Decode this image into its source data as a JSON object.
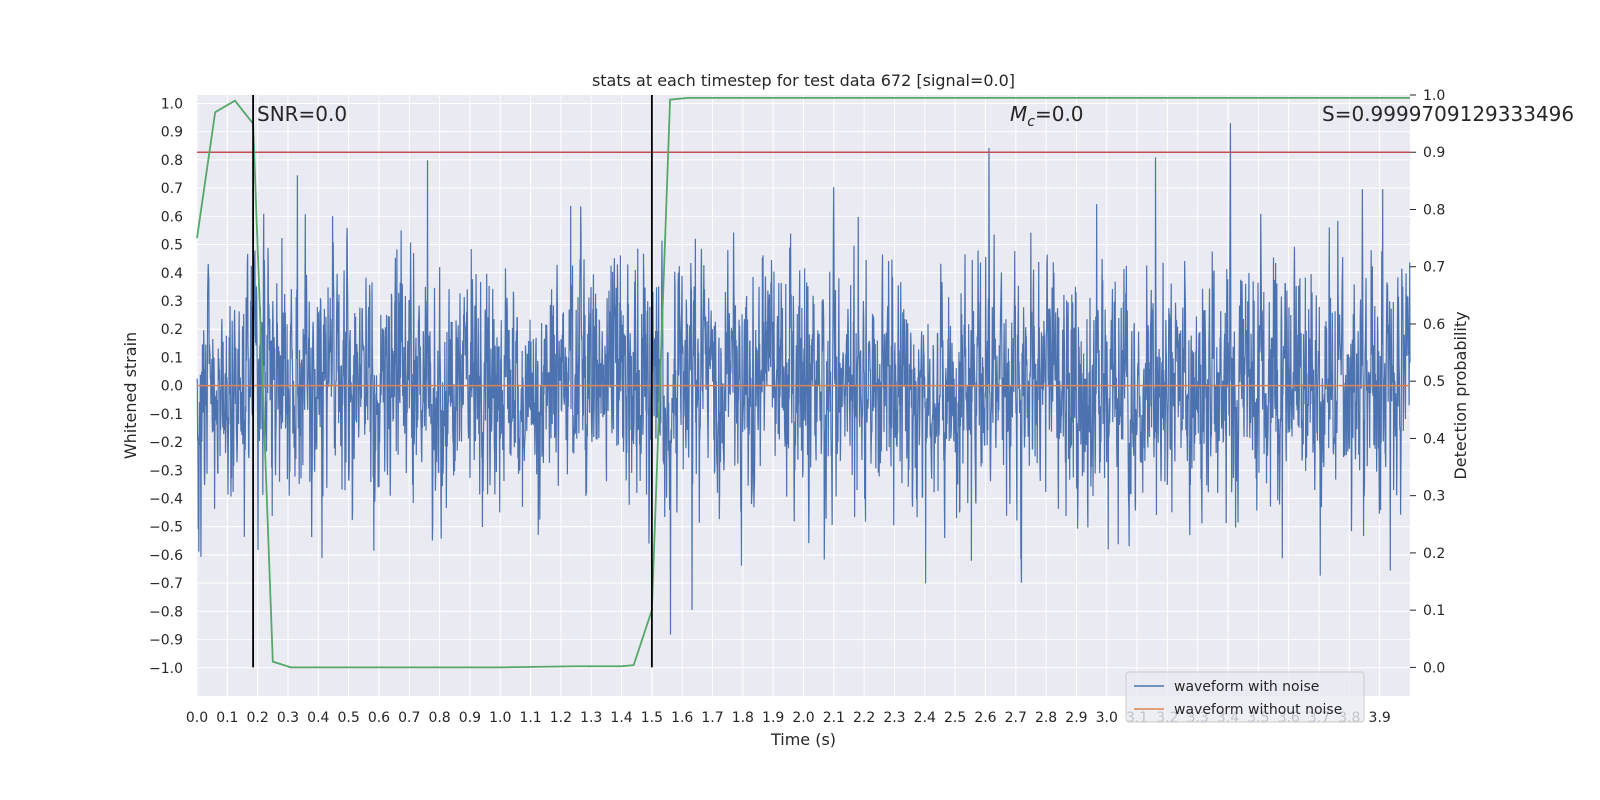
{
  "chart_data": {
    "type": "line",
    "title": "stats at each timestep for test data 672 [signal=0.0]",
    "xlabel": "Time (s)",
    "ylabel": "Whitened strain",
    "y2label": "Detection probability",
    "xlim": [
      0.0,
      4.0
    ],
    "ylim": [
      -1.1,
      1.03
    ],
    "y2lim": [
      -0.05,
      1.0
    ],
    "grid": true,
    "x_ticks": [
      "0.0",
      "0.1",
      "0.2",
      "0.3",
      "0.4",
      "0.5",
      "0.6",
      "0.7",
      "0.8",
      "0.9",
      "1.0",
      "1.1",
      "1.2",
      "1.3",
      "1.4",
      "1.5",
      "1.6",
      "1.7",
      "1.8",
      "1.9",
      "2.0",
      "2.1",
      "2.2",
      "2.3",
      "2.4",
      "2.5",
      "2.6",
      "2.7",
      "2.8",
      "2.9",
      "3.0",
      "3.1",
      "3.2",
      "3.3",
      "3.4",
      "3.5",
      "3.6",
      "3.7",
      "3.8",
      "3.9"
    ],
    "y_ticks": [
      "1.0",
      "0.9",
      "0.8",
      "0.7",
      "0.6",
      "0.5",
      "0.4",
      "0.3",
      "0.2",
      "0.1",
      "0.0",
      "-0.1",
      "-0.2",
      "-0.3",
      "-0.4",
      "-0.5",
      "-0.6",
      "-0.7",
      "-0.8",
      "-0.9",
      "-1.0"
    ],
    "y2_ticks": [
      "1.0",
      "0.9",
      "0.8",
      "0.7",
      "0.6",
      "0.5",
      "0.4",
      "0.3",
      "0.2",
      "0.1",
      "0.0"
    ],
    "annotations": {
      "snr": "SNR=0.0",
      "mc_symbol": "M",
      "mc_sub": "c",
      "mc_value": "=0.0",
      "s": "S=0.9999709129333496"
    },
    "series": [
      {
        "name": "waveform with noise",
        "color": "#4c72b0",
        "kind": "noise",
        "amplitude_range": [
          -1.0,
          0.93
        ]
      },
      {
        "name": "waveform without noise",
        "color": "#dd8452",
        "x": [
          0.0,
          4.0
        ],
        "y": [
          0.0,
          0.0
        ]
      },
      {
        "color": "#55a868",
        "axis": "right",
        "x": [
          0.0,
          0.06,
          0.125,
          0.185,
          0.25,
          0.31,
          0.5,
          1.0,
          1.25,
          1.4,
          1.44,
          1.5,
          1.56,
          1.62,
          2.0,
          3.0,
          4.0
        ],
        "y": [
          0.75,
          0.97,
          0.99,
          0.95,
          0.01,
          0.0,
          0.0,
          0.0,
          0.002,
          0.002,
          0.004,
          0.1,
          0.992,
          0.995,
          0.995,
          0.995,
          0.995
        ]
      }
    ],
    "threshold_line": {
      "axis": "right",
      "y": 0.9,
      "color": "#c44e52"
    },
    "vertical_markers": {
      "x": [
        0.185,
        1.5
      ],
      "color": "#000000"
    },
    "legend": {
      "position": "bottom-right",
      "entries": [
        "waveform with noise",
        "waveform without noise"
      ]
    },
    "colors": {
      "background": "#eaeaf2",
      "grid": "#ffffff",
      "text": "#262626"
    }
  }
}
